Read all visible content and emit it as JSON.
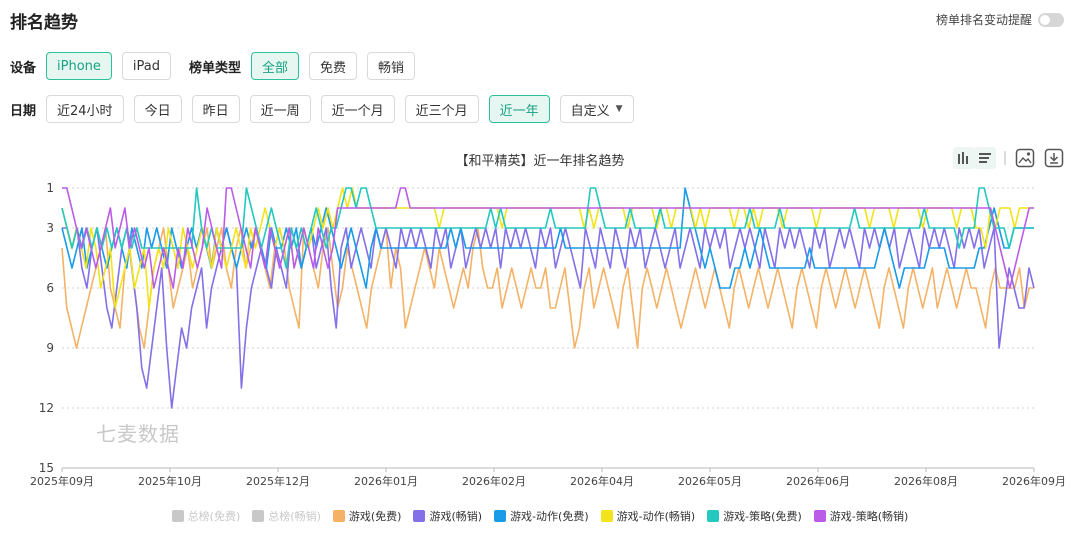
{
  "page": {
    "title": "排名趋势",
    "reminder_label": "榜单排名变动提醒"
  },
  "filters": {
    "device_label": "设备",
    "devices": [
      {
        "label": "iPhone",
        "active": true
      },
      {
        "label": "iPad",
        "active": false
      }
    ],
    "chart_type_label": "榜单类型",
    "chart_types": [
      {
        "label": "全部",
        "active": true
      },
      {
        "label": "免费",
        "active": false
      },
      {
        "label": "畅销",
        "active": false
      }
    ],
    "date_label": "日期",
    "dates": [
      {
        "label": "近24小时",
        "active": false
      },
      {
        "label": "今日",
        "active": false
      },
      {
        "label": "昨日",
        "active": false
      },
      {
        "label": "近一周",
        "active": false
      },
      {
        "label": "近一个月",
        "active": false
      },
      {
        "label": "近三个月",
        "active": false
      },
      {
        "label": "近一年",
        "active": true
      }
    ],
    "custom_label": "自定义"
  },
  "watermark": "七麦数据",
  "icons": [
    "bar-chart-icon",
    "list-icon",
    "image-download-icon",
    "download-icon"
  ],
  "chart_data": {
    "type": "line",
    "title": "【和平精英】近一年排名趋势",
    "y_reversed": true,
    "ylim": [
      1,
      15
    ],
    "yticks": [
      "1",
      "3",
      "6",
      "9",
      "12",
      "15"
    ],
    "xticks": [
      "2025年09月",
      "2025年10月",
      "2025年12月",
      "2026年01月",
      "2026年02月",
      "2026年04月",
      "2026年05月",
      "2026年06月",
      "2026年08月",
      "2026年09月"
    ],
    "grid": true,
    "legend_position": "bottom",
    "legend": [
      {
        "name": "总榜(免费)",
        "color": "#c8c8c8",
        "active": false
      },
      {
        "name": "总榜(畅销)",
        "color": "#c8c8c8",
        "active": false
      },
      {
        "name": "游戏(免费)",
        "color": "#f4b266",
        "active": true
      },
      {
        "name": "游戏(畅销)",
        "color": "#8470e8",
        "active": true
      },
      {
        "name": "游戏-动作(免费)",
        "color": "#1a9be8",
        "active": true
      },
      {
        "name": "游戏-动作(畅销)",
        "color": "#f2e31a",
        "active": true
      },
      {
        "name": "游戏-策略(免费)",
        "color": "#23c8bf",
        "active": true
      },
      {
        "name": "游戏-策略(畅销)",
        "color": "#bb5ce8",
        "active": true
      }
    ],
    "series": [
      {
        "name": "游戏(免费)",
        "color": "#f4b266",
        "values": [
          4,
          7,
          8,
          9,
          8,
          7,
          6,
          5,
          4,
          3,
          6,
          7,
          8,
          5,
          4,
          6,
          8,
          9,
          7,
          5,
          4,
          3,
          5,
          7,
          6,
          5,
          4,
          6,
          5,
          4,
          3,
          5,
          4,
          3,
          5,
          6,
          4,
          3,
          5,
          4,
          3,
          4,
          5,
          6,
          4,
          3,
          4,
          6,
          7,
          8,
          3,
          4,
          5,
          6,
          4,
          3,
          5,
          7,
          6,
          4,
          5,
          6,
          7,
          8,
          6,
          5,
          4,
          3,
          6,
          4,
          5,
          8,
          7,
          6,
          5,
          4,
          5,
          6,
          4,
          5,
          6,
          7,
          6,
          5,
          6,
          4,
          3,
          5,
          6,
          6,
          5,
          7,
          6,
          5,
          6,
          7,
          6,
          5,
          6,
          6,
          5,
          7,
          7,
          6,
          5,
          7,
          9,
          8,
          6,
          5,
          7,
          6,
          5,
          6,
          7,
          8,
          6,
          5,
          7,
          9,
          6,
          5,
          6,
          7,
          6,
          5,
          6,
          7,
          8,
          7,
          6,
          5,
          6,
          7,
          6,
          5,
          6,
          7,
          8,
          6,
          5,
          6,
          7,
          6,
          5,
          6,
          7,
          6,
          5,
          6,
          7,
          8,
          6,
          5,
          6,
          7,
          8,
          6,
          5,
          6,
          7,
          6,
          5,
          6,
          7,
          6,
          5,
          6,
          7,
          8,
          6,
          5,
          6,
          7,
          8,
          6,
          5,
          6,
          7,
          6,
          5,
          7,
          6,
          5,
          6,
          7,
          6,
          5,
          6,
          6,
          7,
          8,
          6,
          5,
          6,
          6,
          6,
          6,
          5,
          7,
          6,
          6
        ]
      },
      {
        "name": "游戏(畅销)",
        "color": "#8470e8",
        "values": [
          3,
          3,
          4,
          3,
          5,
          6,
          4,
          3,
          5,
          7,
          8,
          6,
          4,
          3,
          5,
          7,
          10,
          11,
          9,
          7,
          5,
          9,
          12,
          10,
          8,
          9,
          7,
          6,
          5,
          8,
          6,
          5,
          4,
          3,
          4,
          5,
          11,
          8,
          6,
          5,
          4,
          5,
          6,
          4,
          5,
          6,
          3,
          4,
          5,
          4,
          3,
          5,
          4,
          3,
          6,
          8,
          4,
          3,
          5,
          4,
          3,
          4,
          5,
          3,
          4,
          3,
          4,
          5,
          3,
          4,
          3,
          4,
          3,
          4,
          5,
          3,
          4,
          3,
          5,
          4,
          3,
          5,
          4,
          3,
          4,
          3,
          4,
          3,
          5,
          3,
          4,
          3,
          4,
          3,
          4,
          5,
          3,
          4,
          3,
          5,
          4,
          3,
          4,
          5,
          6,
          3,
          4,
          5,
          3,
          4,
          5,
          3,
          4,
          5,
          3,
          4,
          3,
          5,
          4,
          3,
          4,
          5,
          4,
          3,
          5,
          4,
          3,
          4,
          5,
          3,
          4,
          3,
          4,
          3,
          5,
          4,
          3,
          4,
          3,
          4,
          5,
          3,
          4,
          5,
          3,
          4,
          3,
          4,
          3,
          4,
          5,
          3,
          4,
          3,
          5,
          4,
          3,
          4,
          3,
          4,
          5,
          3,
          4,
          3,
          4,
          3,
          4,
          3,
          5,
          4,
          3,
          4,
          5,
          3,
          4,
          3,
          4,
          3,
          4,
          5,
          3,
          4,
          3,
          4,
          3,
          5,
          4,
          3,
          9,
          7,
          5,
          6,
          7,
          7,
          5,
          6
        ]
      },
      {
        "name": "游戏-动作(免费)",
        "color": "#1a9be8",
        "values": [
          3,
          4,
          5,
          4,
          3,
          5,
          4,
          3,
          4,
          5,
          4,
          3,
          4,
          5,
          3,
          4,
          5,
          3,
          4,
          3,
          4,
          5,
          3,
          4,
          5,
          4,
          3,
          4,
          3,
          4,
          5,
          3,
          4,
          3,
          4,
          5,
          4,
          3,
          4,
          3,
          4,
          5,
          3,
          4,
          4,
          3,
          4,
          3,
          5,
          4,
          3,
          4,
          3,
          2,
          3,
          4,
          5,
          4,
          3,
          4,
          5,
          6,
          4,
          3,
          4,
          4,
          4,
          4,
          4,
          4,
          4,
          4,
          4,
          4,
          4,
          4,
          4,
          4,
          3,
          4,
          3,
          4,
          4,
          4,
          4,
          4,
          4,
          4,
          4,
          4,
          4,
          4,
          4,
          4,
          4,
          4,
          4,
          4,
          4,
          4,
          3,
          4,
          4,
          4,
          4,
          4,
          4,
          4,
          4,
          4,
          4,
          4,
          4,
          4,
          4,
          4,
          4,
          4,
          4,
          4,
          4,
          4,
          4,
          4,
          4,
          1,
          2,
          3,
          4,
          5,
          4,
          5,
          6,
          6,
          6,
          5,
          5,
          4,
          5,
          4,
          3,
          4,
          5,
          5,
          5,
          5,
          5,
          5,
          5,
          5,
          4,
          5,
          5,
          5,
          5,
          5,
          5,
          5,
          5,
          5,
          5,
          5,
          5,
          5,
          4,
          3,
          4,
          5,
          6,
          5,
          5,
          5,
          5,
          5,
          4,
          4,
          4,
          4,
          5,
          5,
          5,
          5,
          5,
          5,
          4,
          4,
          3,
          2,
          3,
          4,
          4,
          3,
          3,
          3,
          3,
          3
        ]
      },
      {
        "name": "游戏-动作(畅销)",
        "color": "#f2e31a",
        "values": [
          2,
          3,
          4,
          3,
          4,
          5,
          3,
          4,
          6,
          5,
          4,
          7,
          6,
          5,
          4,
          6,
          5,
          4,
          7,
          5,
          4,
          5,
          3,
          4,
          5,
          3,
          4,
          5,
          4,
          3,
          4,
          5,
          3,
          4,
          5,
          4,
          3,
          4,
          5,
          3,
          4,
          3,
          2,
          3,
          4,
          3,
          4,
          3,
          5,
          4,
          3,
          4,
          3,
          2,
          3,
          2,
          3,
          2,
          1,
          2,
          1,
          2,
          2,
          2,
          2,
          2,
          2,
          2,
          2,
          2,
          2,
          2,
          2,
          2,
          2,
          2,
          2,
          2,
          3,
          2,
          2,
          2,
          2,
          2,
          2,
          2,
          2,
          2,
          2,
          2,
          2,
          3,
          2,
          2,
          2,
          2,
          2,
          2,
          2,
          2,
          2,
          2,
          2,
          2,
          2,
          2,
          2,
          2,
          3,
          2,
          3,
          2,
          2,
          2,
          2,
          2,
          2,
          3,
          2,
          2,
          2,
          2,
          2,
          3,
          2,
          2,
          3,
          2,
          2,
          2,
          2,
          3,
          2,
          3,
          2,
          2,
          2,
          2,
          2,
          3,
          2,
          2,
          3,
          2,
          3,
          2,
          2,
          2,
          2,
          3,
          2,
          2,
          2,
          2,
          2,
          2,
          3,
          2,
          2,
          2,
          2,
          2,
          2,
          2,
          2,
          2,
          2,
          3,
          2,
          2,
          2,
          2,
          3,
          2,
          2,
          2,
          2,
          2,
          3,
          2,
          2,
          2,
          2,
          2,
          2,
          3,
          2,
          2,
          2,
          3,
          3,
          4,
          2,
          3,
          2,
          2,
          2,
          3,
          2,
          2,
          2,
          2
        ]
      },
      {
        "name": "游戏-策略(免费)",
        "color": "#23c8bf",
        "values": [
          2,
          3,
          4,
          3,
          4,
          3,
          4,
          3,
          4,
          3,
          4,
          3,
          4,
          3,
          4,
          3,
          4,
          4,
          4,
          4,
          4,
          4,
          4,
          4,
          4,
          4,
          4,
          1,
          3,
          4,
          3,
          4,
          4,
          4,
          4,
          4,
          4,
          1,
          2,
          3,
          4,
          3,
          2,
          3,
          4,
          5,
          3,
          4,
          3,
          4,
          3,
          2,
          3,
          4,
          3,
          3,
          2,
          1,
          1,
          2,
          1,
          1,
          2,
          3,
          3,
          3,
          3,
          3,
          3,
          3,
          3,
          3,
          3,
          3,
          3,
          3,
          3,
          3,
          3,
          3,
          3,
          3,
          3,
          3,
          3,
          3,
          2,
          3,
          2,
          3,
          3,
          3,
          3,
          3,
          3,
          3,
          3,
          3,
          2,
          3,
          3,
          3,
          3,
          3,
          3,
          3,
          1,
          1,
          2,
          3,
          3,
          3,
          3,
          3,
          2,
          3,
          3,
          3,
          3,
          3,
          2,
          3,
          3,
          3,
          3,
          3,
          3,
          3,
          3,
          3,
          3,
          3,
          3,
          3,
          3,
          3,
          3,
          3,
          2,
          3,
          3,
          3,
          3,
          3,
          2,
          3,
          3,
          3,
          3,
          3,
          3,
          3,
          3,
          3,
          3,
          3,
          3,
          3,
          3,
          2,
          3,
          3,
          3,
          3,
          3,
          3,
          3,
          3,
          3,
          3,
          3,
          3,
          3,
          2,
          3,
          3,
          3,
          3,
          3,
          3,
          4,
          3,
          3,
          3,
          1,
          1,
          2,
          3,
          3,
          3,
          4,
          3,
          3,
          3,
          3,
          3
        ]
      },
      {
        "name": "游戏-策略(畅销)",
        "color": "#bb5ce8",
        "values": [
          1,
          1,
          2,
          3,
          4,
          3,
          4,
          5,
          4,
          3,
          2,
          4,
          3,
          2,
          4,
          3,
          4,
          5,
          4,
          6,
          5,
          4,
          5,
          6,
          4,
          5,
          3,
          4,
          5,
          4,
          2,
          3,
          4,
          5,
          1,
          1,
          2,
          3,
          4,
          5,
          3,
          4,
          5,
          3,
          4,
          5,
          4,
          3,
          5,
          4,
          3,
          4,
          5,
          3,
          4,
          5,
          4,
          2,
          2,
          2,
          2,
          2,
          2,
          2,
          2,
          2,
          2,
          2,
          2,
          2,
          1,
          1,
          2,
          2,
          2,
          2,
          2,
          2,
          2,
          2,
          2,
          2,
          2,
          2,
          2,
          2,
          2,
          2,
          2,
          2,
          2,
          2,
          2,
          2,
          2,
          2,
          2,
          2,
          2,
          2,
          2,
          2,
          2,
          2,
          2,
          2,
          2,
          2,
          2,
          2,
          2,
          2,
          2,
          2,
          2,
          2,
          2,
          2,
          2,
          2,
          2,
          2,
          2,
          2,
          2,
          2,
          2,
          2,
          2,
          2,
          2,
          2,
          2,
          2,
          2,
          2,
          2,
          2,
          2,
          2,
          2,
          2,
          2,
          2,
          2,
          2,
          2,
          2,
          2,
          2,
          2,
          2,
          2,
          2,
          2,
          2,
          2,
          2,
          2,
          2,
          2,
          2,
          2,
          2,
          2,
          2,
          2,
          2,
          2,
          2,
          2,
          2,
          2,
          2,
          2,
          2,
          2,
          2,
          2,
          2,
          2,
          2,
          2,
          2,
          2,
          2,
          2,
          2,
          2,
          2,
          2,
          2,
          2,
          3,
          4,
          5,
          6,
          5,
          4,
          3,
          2,
          2
        ]
      }
    ]
  }
}
